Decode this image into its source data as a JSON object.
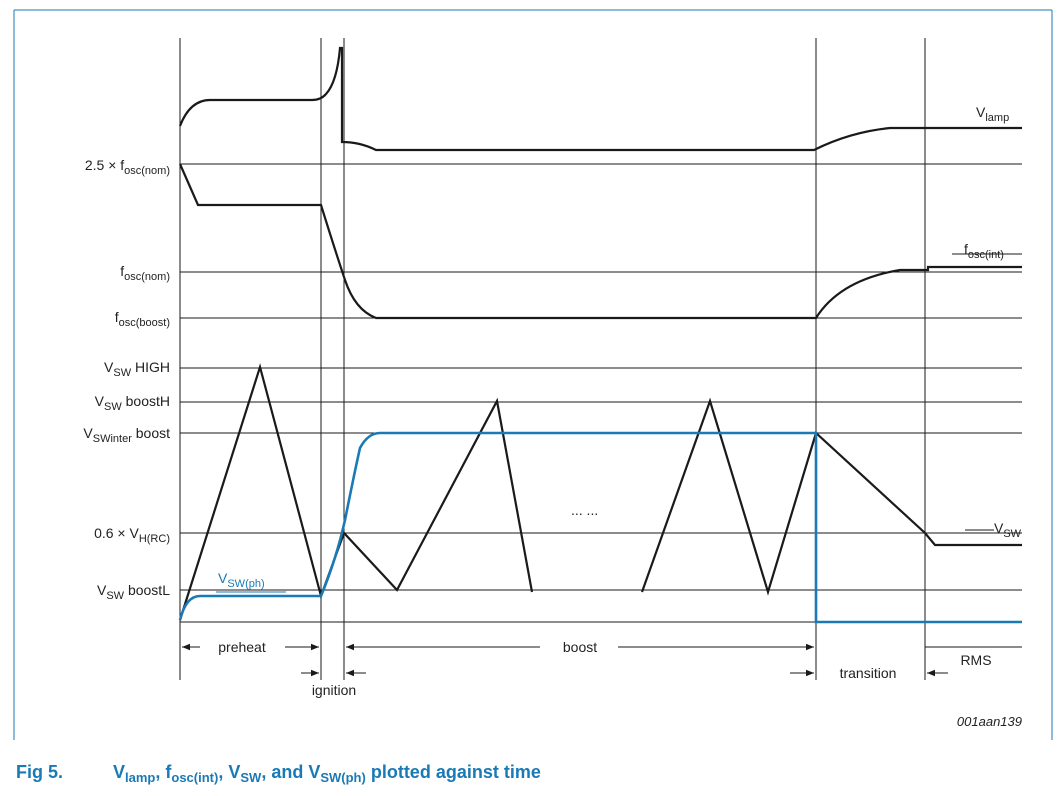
{
  "diagram": {
    "y_labels": {
      "fosc_nom_2_5": {
        "main": "2.5 × f",
        "sub": "osc(nom)"
      },
      "fosc_nom": {
        "main": "f",
        "sub": "osc(nom)"
      },
      "fosc_boost": {
        "main": "f",
        "sub": "osc(boost)"
      },
      "vsw_high": {
        "main": "V",
        "sub": "SW",
        "tail": " HIGH"
      },
      "vsw_boosth": {
        "main": "V",
        "sub": "SW",
        "tail": " boostH"
      },
      "vsw_inter": {
        "main": "V",
        "sub": "SWinter",
        "tail": " boost"
      },
      "vh_rc": {
        "main": "0.6 × V",
        "sub": "H(RC)"
      },
      "vsw_boostl": {
        "main": "V",
        "sub": "SW",
        "tail": " boostL"
      }
    },
    "curve_labels": {
      "vlamp": {
        "main": "V",
        "sub": "lamp"
      },
      "fosc_int": {
        "main": "f",
        "sub": "osc(int)"
      },
      "vsw": {
        "main": "V",
        "sub": "SW"
      },
      "vsw_ph": {
        "main": "V",
        "sub": "SW(ph)"
      }
    },
    "ellipsis": "... ...",
    "phases": {
      "preheat": "preheat",
      "ignition": "ignition",
      "boost": "boost",
      "transition": "transition",
      "rms": "RMS"
    },
    "figure_id": "001aan139",
    "colors": {
      "blue_trace": "#1a7ab5",
      "black_trace": "#1a1a1a",
      "caption": "#1a7ab5",
      "frame": "#1a7ab5"
    }
  },
  "caption": {
    "number": "Fig 5.",
    "p1": {
      "main": "V",
      "sub": "lamp"
    },
    "sep1": ", ",
    "p2": {
      "main": "f",
      "sub": "osc(int)"
    },
    "sep2": ", ",
    "p3": {
      "main": "V",
      "sub": "SW"
    },
    "sep3": ", and ",
    "p4": {
      "main": "V",
      "sub": "SW(ph)"
    },
    "tail": " plotted against time"
  }
}
